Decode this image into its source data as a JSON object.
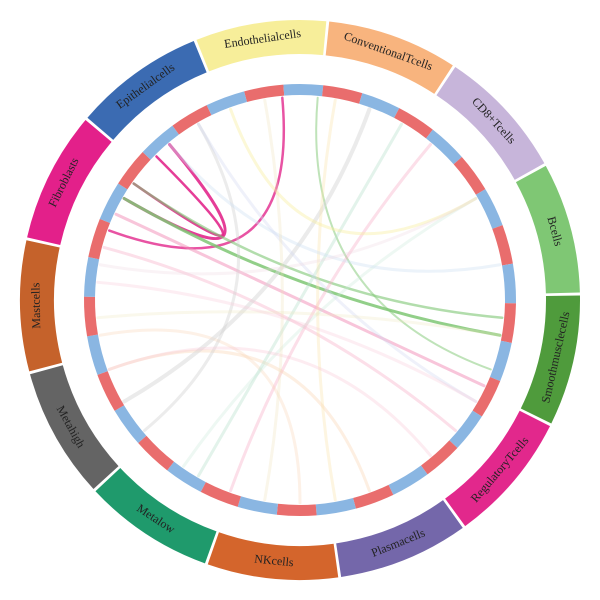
{
  "sectors": [
    {
      "label": "Endothelialcells",
      "color": "#f7ee9a"
    },
    {
      "label": "ConventionalTcells",
      "color": "#f8b47e"
    },
    {
      "label": "CD8+Tcells",
      "color": "#c7b5da"
    },
    {
      "label": "Bcells",
      "color": "#7fc774"
    },
    {
      "label": "Smoothmusclecells",
      "color": "#4f9b3c"
    },
    {
      "label": "RegulatoryTcells",
      "color": "#e2288c"
    },
    {
      "label": "Plasmacells",
      "color": "#7467aa"
    },
    {
      "label": "NKcells",
      "color": "#d4652c"
    },
    {
      "label": "Metalow",
      "color": "#1f9a6c"
    },
    {
      "label": "Metahigh",
      "color": "#646464"
    },
    {
      "label": "Mastcells",
      "color": "#c5622b"
    },
    {
      "label": "Fibroblasts",
      "color": "#e3208a"
    },
    {
      "label": "Epithelialcells",
      "color": "#3b6bb2"
    }
  ]
}
